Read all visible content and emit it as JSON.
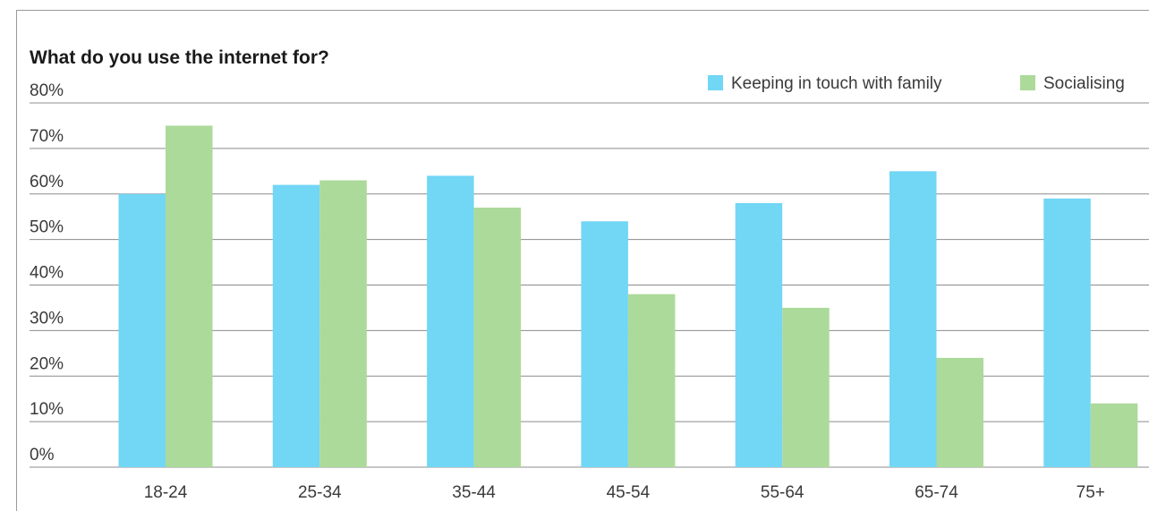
{
  "chart_data": {
    "type": "bar",
    "title": "What do you use the internet for?",
    "categories": [
      "18-24",
      "25-34",
      "35-44",
      "45-54",
      "55-64",
      "65-74",
      "75+"
    ],
    "series": [
      {
        "name": "Keeping in touch with family",
        "color": "#72d6f5",
        "values": [
          60,
          62,
          64,
          54,
          58,
          65,
          59
        ]
      },
      {
        "name": "Socialising",
        "color": "#acda9a",
        "values": [
          75,
          63,
          57,
          38,
          35,
          24,
          14
        ]
      }
    ],
    "yticks": [
      "0%",
      "10%",
      "20%",
      "30%",
      "40%",
      "50%",
      "60%",
      "70%",
      "80%"
    ],
    "ylim": [
      0,
      80
    ],
    "grid": true,
    "legend_position": "top-right"
  }
}
